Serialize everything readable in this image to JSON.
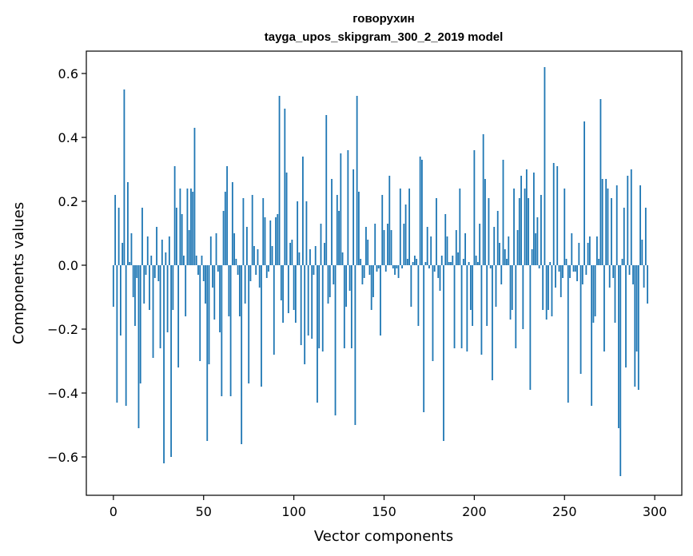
{
  "chart_data": {
    "type": "bar",
    "title": "говорухин",
    "subtitle": "tayga_upos_skipgram_300_2_2019 model",
    "xlabel": "Vector components",
    "ylabel": "Components values",
    "xlim": [
      -15,
      315
    ],
    "ylim": [
      -0.72,
      0.67
    ],
    "xticks": [
      0,
      50,
      100,
      150,
      200,
      250,
      300
    ],
    "yticks": [
      -0.6,
      -0.4,
      -0.2,
      0.0,
      0.2,
      0.4,
      0.6
    ],
    "ytick_labels": [
      "−0.6",
      "−0.4",
      "−0.2",
      "0.0",
      "0.2",
      "0.4",
      "0.6"
    ],
    "xtick_labels": [
      "0",
      "50",
      "100",
      "150",
      "200",
      "250",
      "300"
    ],
    "bar_color": "#1f77b4",
    "grid": false,
    "values": [
      -0.13,
      0.22,
      -0.43,
      0.18,
      -0.22,
      0.07,
      0.55,
      -0.44,
      0.26,
      0.01,
      0.1,
      -0.1,
      -0.19,
      -0.04,
      -0.51,
      -0.37,
      0.18,
      -0.12,
      -0.03,
      0.09,
      -0.14,
      0.03,
      -0.29,
      -0.04,
      0.12,
      -0.05,
      -0.26,
      0.08,
      -0.62,
      0.04,
      -0.21,
      0.09,
      -0.6,
      -0.14,
      0.31,
      0.18,
      -0.32,
      0.24,
      0.16,
      0.03,
      -0.16,
      0.24,
      0.11,
      0.24,
      0.23,
      0.43,
      0.03,
      -0.03,
      -0.3,
      0.03,
      -0.05,
      -0.12,
      -0.55,
      -0.31,
      0.09,
      -0.07,
      -0.17,
      0.1,
      -0.02,
      -0.21,
      -0.41,
      0.17,
      0.23,
      0.31,
      -0.16,
      -0.41,
      0.26,
      0.1,
      0.02,
      -0.03,
      -0.16,
      -0.56,
      0.21,
      -0.12,
      0.12,
      -0.37,
      -0.05,
      0.22,
      0.06,
      -0.03,
      0.05,
      -0.07,
      -0.38,
      0.21,
      0.15,
      -0.04,
      -0.02,
      0.14,
      0.06,
      -0.28,
      0.15,
      0.16,
      0.53,
      -0.11,
      -0.18,
      0.49,
      0.29,
      -0.15,
      0.07,
      0.08,
      -0.14,
      -0.18,
      0.2,
      0.04,
      -0.25,
      0.34,
      -0.31,
      0.2,
      -0.22,
      0.05,
      -0.23,
      -0.03,
      0.06,
      -0.43,
      -0.26,
      0.13,
      -0.27,
      0.07,
      0.47,
      -0.12,
      -0.1,
      0.27,
      -0.06,
      -0.47,
      0.22,
      0.17,
      0.35,
      0.04,
      -0.26,
      -0.13,
      0.36,
      -0.08,
      -0.26,
      0.3,
      -0.5,
      0.53,
      0.23,
      0.02,
      -0.06,
      -0.04,
      0.12,
      0.08,
      -0.03,
      -0.14,
      -0.1,
      0.13,
      -0.02,
      -0.01,
      -0.22,
      0.22,
      0.11,
      -0.02,
      0.13,
      0.28,
      0.11,
      -0.01,
      -0.03,
      -0.01,
      -0.04,
      0.24,
      -0.01,
      0.13,
      0.19,
      0.02,
      0.24,
      -0.13,
      0.01,
      0.03,
      0.02,
      -0.19,
      0.34,
      0.33,
      -0.46,
      0.01,
      0.12,
      -0.01,
      0.09,
      -0.3,
      -0.02,
      0.21,
      -0.04,
      -0.08,
      0.03,
      -0.55,
      0.16,
      0.09,
      0.01,
      0.01,
      0.03,
      -0.26,
      0.11,
      0.04,
      0.24,
      -0.26,
      0.02,
      0.1,
      -0.27,
      0.01,
      -0.14,
      -0.19,
      0.36,
      0.03,
      0.01,
      0.13,
      -0.28,
      0.41,
      0.27,
      -0.19,
      0.21,
      -0.01,
      -0.36,
      0.12,
      -0.13,
      0.17,
      0.07,
      -0.06,
      0.33,
      0.05,
      0.02,
      0.09,
      -0.17,
      -0.14,
      0.24,
      -0.26,
      0.11,
      0.21,
      0.28,
      -0.2,
      0.24,
      0.3,
      0.21,
      -0.39,
      0.05,
      0.29,
      0.1,
      0.15,
      -0.01,
      0.22,
      -0.14,
      0.62,
      -0.17,
      -0.14,
      0.01,
      -0.16,
      0.32,
      -0.07,
      0.31,
      -0.02,
      -0.1,
      -0.04,
      0.24,
      0.02,
      -0.43,
      -0.04,
      0.1,
      -0.02,
      -0.02,
      -0.05,
      0.07,
      -0.34,
      -0.06,
      0.45,
      -0.03,
      0.07,
      0.09,
      -0.44,
      -0.18,
      -0.16,
      0.09,
      0.02,
      0.52,
      0.27,
      -0.27,
      0.27,
      0.24,
      -0.07,
      0.21,
      -0.04,
      -0.18,
      0.25,
      -0.51,
      -0.66,
      0.02,
      0.18,
      -0.32,
      0.28,
      -0.03,
      0.3,
      -0.06,
      -0.38,
      -0.27,
      -0.39,
      0.25,
      0.08,
      -0.07,
      0.18,
      -0.12
    ]
  }
}
